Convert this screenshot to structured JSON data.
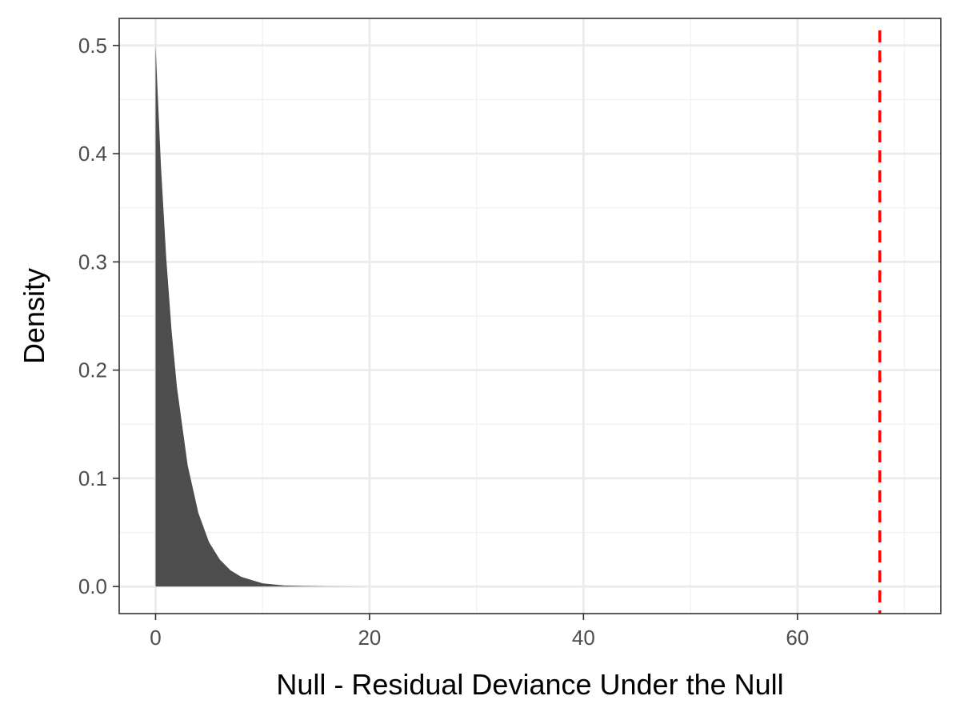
{
  "chart_data": {
    "type": "area",
    "title": "",
    "xlabel": "Null - Residual Deviance Under the Null",
    "ylabel": "Density",
    "xlim": [
      -3.4,
      73.4
    ],
    "ylim": [
      -0.025,
      0.525
    ],
    "x_ticks": [
      0,
      20,
      40,
      60
    ],
    "x_tick_labels": [
      "0",
      "20",
      "40",
      "60"
    ],
    "y_ticks": [
      0.0,
      0.1,
      0.2,
      0.3,
      0.4,
      0.5
    ],
    "y_tick_labels": [
      "0.0",
      "0.1",
      "0.2",
      "0.3",
      "0.4",
      "0.5"
    ],
    "grid": true,
    "series": [
      {
        "fill_color": "#4d4d4d",
        "x": [
          0,
          0.5,
          1,
          1.5,
          2,
          3,
          4,
          5,
          6,
          7,
          8,
          9,
          10,
          12,
          14,
          16,
          18,
          20
        ],
        "y": [
          0.5,
          0.389,
          0.303,
          0.236,
          0.184,
          0.112,
          0.068,
          0.041,
          0.025,
          0.015,
          0.009,
          0.006,
          0.003,
          0.001,
          0.0005,
          0.0002,
          0.0001,
          0.0
        ]
      }
    ],
    "reference_line": {
      "x": 67.7,
      "color": "#ff0000",
      "style": "dashed"
    },
    "colors": {
      "panel_border": "#333333",
      "grid_major": "#ebebeb",
      "grid_minor": "#f2f2f2"
    }
  }
}
